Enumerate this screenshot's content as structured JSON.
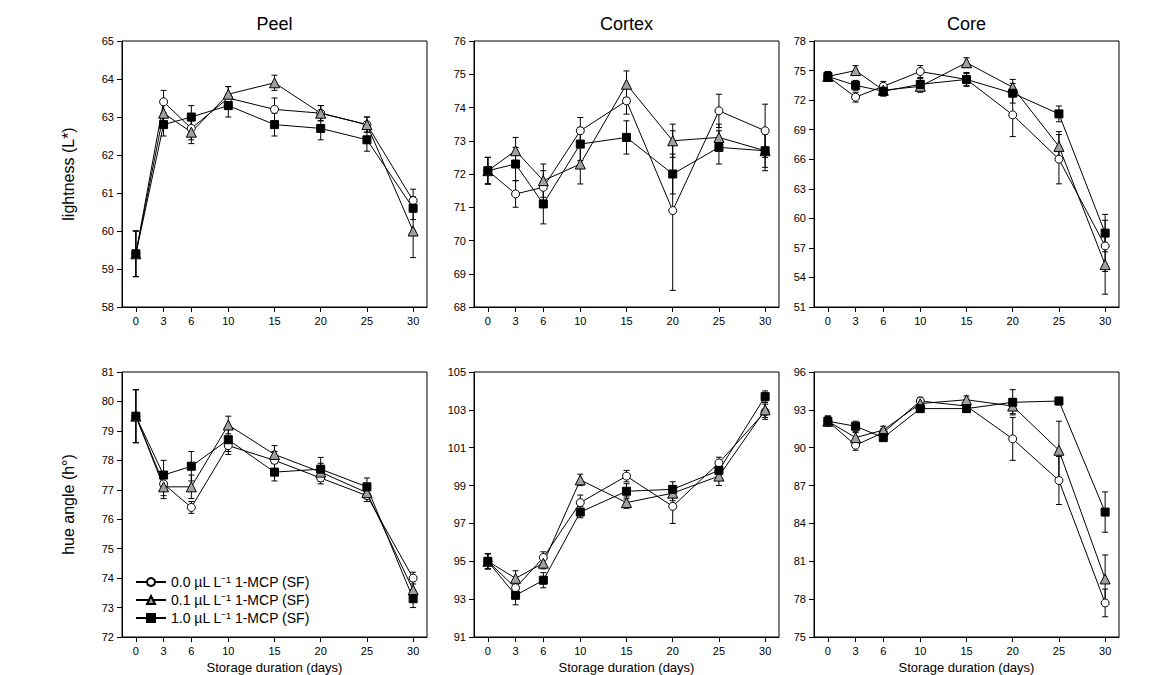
{
  "chart_data": [
    {
      "type": "line",
      "title": "Peel",
      "ylabel": "lightness (L*)",
      "x": [
        0,
        3,
        6,
        10,
        15,
        20,
        25,
        30
      ],
      "xlim": [
        -1.5,
        31.5
      ],
      "xticks": [
        0,
        3,
        6,
        10,
        15,
        20,
        25,
        30
      ],
      "ylim": [
        58,
        65
      ],
      "yticks": [
        58,
        59,
        60,
        61,
        62,
        63,
        64,
        65
      ],
      "series": [
        {
          "name": "0.0 µL L⁻¹ 1-MCP (SF)",
          "color": "#ffffff",
          "marker": "circle",
          "values": [
            59.4,
            63.4,
            62.7,
            63.5,
            63.2,
            63.1,
            62.8,
            60.8
          ],
          "errors": [
            0.6,
            0.3,
            0.3,
            0.3,
            0.3,
            0.2,
            0.2,
            0.3
          ]
        },
        {
          "name": "0.1 µL L⁻¹ 1-MCP (SF)",
          "color": "#a0a0a0",
          "marker": "triangle",
          "values": [
            59.4,
            63.1,
            62.6,
            63.6,
            63.9,
            63.1,
            62.8,
            60.0
          ],
          "errors": [
            0.6,
            0.3,
            0.3,
            0.2,
            0.2,
            0.2,
            0.2,
            0.7
          ]
        },
        {
          "name": "1.0 µL L⁻¹ 1-MCP (SF)",
          "color": "#000000",
          "marker": "square",
          "values": [
            59.4,
            62.8,
            63.0,
            63.3,
            62.8,
            62.7,
            62.4,
            60.6
          ],
          "errors": [
            0.6,
            0.3,
            0.3,
            0.3,
            0.3,
            0.3,
            0.3,
            0.3
          ]
        }
      ]
    },
    {
      "type": "line",
      "title": "Cortex",
      "x": [
        0,
        3,
        6,
        10,
        15,
        20,
        25,
        30
      ],
      "xlim": [
        -1.5,
        31.5
      ],
      "xticks": [
        0,
        3,
        6,
        10,
        15,
        20,
        25,
        30
      ],
      "ylim": [
        68,
        76
      ],
      "yticks": [
        68,
        69,
        70,
        71,
        72,
        73,
        74,
        75,
        76
      ],
      "series": [
        {
          "name": "0.0 µL L⁻¹ 1-MCP (SF)",
          "color": "#ffffff",
          "marker": "circle",
          "values": [
            72.1,
            71.4,
            71.6,
            73.3,
            74.2,
            70.9,
            73.9,
            73.3
          ],
          "errors": [
            0.4,
            0.4,
            0.5,
            0.4,
            0.4,
            2.4,
            0.5,
            0.8
          ]
        },
        {
          "name": "0.1 µL L⁻¹ 1-MCP (SF)",
          "color": "#a0a0a0",
          "marker": "triangle",
          "values": [
            72.1,
            72.7,
            71.8,
            72.3,
            74.7,
            73.0,
            73.1,
            72.7
          ],
          "errors": [
            0.4,
            0.4,
            0.5,
            0.6,
            0.4,
            0.5,
            0.4,
            0.5
          ]
        },
        {
          "name": "1.0 µL L⁻¹ 1-MCP (SF)",
          "color": "#000000",
          "marker": "square",
          "values": [
            72.1,
            72.3,
            71.1,
            72.9,
            73.1,
            72.0,
            72.8,
            72.7
          ],
          "errors": [
            0.4,
            0.5,
            0.6,
            0.5,
            0.5,
            0.6,
            0.5,
            0.6
          ]
        }
      ]
    },
    {
      "type": "line",
      "title": "Core",
      "x": [
        0,
        3,
        6,
        10,
        15,
        20,
        25,
        30
      ],
      "xlim": [
        -1.5,
        31.5
      ],
      "xticks": [
        0,
        3,
        6,
        10,
        15,
        20,
        25,
        30
      ],
      "ylim": [
        51,
        78
      ],
      "yticks": [
        51,
        54,
        57,
        60,
        63,
        66,
        69,
        72,
        75,
        78
      ],
      "series": [
        {
          "name": "0.0 µL L⁻¹ 1-MCP (SF)",
          "color": "#ffffff",
          "marker": "circle",
          "values": [
            74.4,
            72.3,
            73.4,
            74.9,
            74.1,
            70.5,
            66.0,
            57.2
          ],
          "errors": [
            0.5,
            0.5,
            0.5,
            0.6,
            0.6,
            2.2,
            2.5,
            2.6
          ]
        },
        {
          "name": "0.1 µL L⁻¹ 1-MCP (SF)",
          "color": "#a0a0a0",
          "marker": "triangle",
          "values": [
            74.4,
            75.0,
            73.0,
            73.4,
            75.8,
            73.3,
            67.3,
            55.3
          ],
          "errors": [
            0.5,
            0.5,
            0.5,
            0.6,
            0.5,
            0.8,
            1.5,
            3.0
          ]
        },
        {
          "name": "1.0 µL L⁻¹ 1-MCP (SF)",
          "color": "#000000",
          "marker": "square",
          "values": [
            74.4,
            73.5,
            72.9,
            73.6,
            74.1,
            72.7,
            70.6,
            58.5
          ],
          "errors": [
            0.5,
            0.5,
            0.5,
            0.6,
            0.7,
            1.0,
            0.8,
            1.9
          ]
        }
      ]
    },
    {
      "type": "line",
      "ylabel": "hue angle (h°)",
      "xlabel": "Storage duration (days)",
      "legend": "lower left",
      "x": [
        0,
        3,
        6,
        10,
        15,
        20,
        25,
        30
      ],
      "xlim": [
        -1.5,
        31.5
      ],
      "xticks": [
        0,
        3,
        6,
        10,
        15,
        20,
        25,
        30
      ],
      "ylim": [
        72,
        81
      ],
      "yticks": [
        72,
        73,
        74,
        75,
        76,
        77,
        78,
        79,
        80,
        81
      ],
      "series": [
        {
          "name": "0.0 µL L⁻¹ 1-MCP (SF)",
          "color": "#ffffff",
          "marker": "circle",
          "values": [
            79.5,
            77.2,
            76.4,
            78.5,
            78.0,
            77.4,
            76.8,
            74.0
          ],
          "errors": [
            0.9,
            0.4,
            0.2,
            0.3,
            0.3,
            0.2,
            0.2,
            0.2
          ]
        },
        {
          "name": "0.1 µL L⁻¹ 1-MCP (SF)",
          "color": "#a0a0a0",
          "marker": "triangle",
          "values": [
            79.5,
            77.1,
            77.1,
            79.2,
            78.2,
            77.6,
            76.9,
            73.6
          ],
          "errors": [
            0.9,
            0.4,
            0.4,
            0.3,
            0.3,
            0.3,
            0.2,
            0.3
          ]
        },
        {
          "name": "1.0 µL L⁻¹ 1-MCP (SF)",
          "color": "#000000",
          "marker": "square",
          "values": [
            79.5,
            77.5,
            77.8,
            78.7,
            77.6,
            77.7,
            77.1,
            73.3
          ],
          "errors": [
            0.9,
            0.5,
            0.5,
            0.4,
            0.3,
            0.4,
            0.3,
            0.3
          ]
        }
      ]
    },
    {
      "type": "line",
      "xlabel": "Storage duration (days)",
      "x": [
        0,
        3,
        6,
        10,
        15,
        20,
        25,
        30
      ],
      "xlim": [
        -1.5,
        31.5
      ],
      "xticks": [
        0,
        3,
        6,
        10,
        15,
        20,
        25,
        30
      ],
      "ylim": [
        91,
        105
      ],
      "yticks": [
        91,
        93,
        95,
        97,
        99,
        101,
        103,
        105
      ],
      "series": [
        {
          "name": "0.0 µL L⁻¹ 1-MCP (SF)",
          "color": "#ffffff",
          "marker": "circle",
          "values": [
            95.0,
            93.6,
            95.2,
            98.1,
            99.5,
            97.9,
            100.2,
            102.9
          ],
          "errors": [
            0.4,
            0.4,
            0.3,
            0.4,
            0.3,
            0.9,
            0.3,
            0.4
          ]
        },
        {
          "name": "0.1 µL L⁻¹ 1-MCP (SF)",
          "color": "#a0a0a0",
          "marker": "triangle",
          "values": [
            95.0,
            94.1,
            94.9,
            99.3,
            98.1,
            98.6,
            99.5,
            103.0
          ],
          "errors": [
            0.4,
            0.4,
            0.3,
            0.3,
            0.3,
            0.4,
            0.5,
            0.4
          ]
        },
        {
          "name": "1.0 µL L⁻¹ 1-MCP (SF)",
          "color": "#000000",
          "marker": "square",
          "values": [
            95.0,
            93.2,
            94.0,
            97.6,
            98.7,
            98.8,
            99.8,
            103.7
          ],
          "errors": [
            0.4,
            0.5,
            0.4,
            0.3,
            0.4,
            0.4,
            0.4,
            0.3
          ]
        }
      ]
    },
    {
      "type": "line",
      "xlabel": "Storage duration (days)",
      "x": [
        0,
        3,
        6,
        10,
        15,
        20,
        25,
        30
      ],
      "xlim": [
        -1.5,
        31.5
      ],
      "xticks": [
        0,
        3,
        6,
        10,
        15,
        20,
        25,
        30
      ],
      "ylim": [
        75,
        96
      ],
      "yticks": [
        75,
        78,
        81,
        84,
        87,
        90,
        93,
        96
      ],
      "series": [
        {
          "name": "0.0 µL L⁻¹ 1-MCP (SF)",
          "color": "#ffffff",
          "marker": "circle",
          "values": [
            92.1,
            90.2,
            91.2,
            93.7,
            93.3,
            90.7,
            87.4,
            77.7
          ],
          "errors": [
            0.4,
            0.4,
            0.3,
            0.3,
            0.3,
            1.7,
            1.9,
            1.1
          ]
        },
        {
          "name": "0.1 µL L⁻¹ 1-MCP (SF)",
          "color": "#a0a0a0",
          "marker": "triangle",
          "values": [
            92.1,
            90.8,
            91.4,
            93.5,
            93.8,
            93.3,
            89.8,
            79.6
          ],
          "errors": [
            0.4,
            0.4,
            0.3,
            0.3,
            0.3,
            0.6,
            2.3,
            1.9
          ]
        },
        {
          "name": "1.0 µL L⁻¹ 1-MCP (SF)",
          "color": "#000000",
          "marker": "square",
          "values": [
            92.1,
            91.7,
            90.8,
            93.1,
            93.1,
            93.6,
            93.7,
            84.9
          ],
          "errors": [
            0.4,
            0.4,
            0.3,
            0.3,
            0.3,
            1.0,
            0.3,
            1.6
          ]
        }
      ]
    }
  ]
}
